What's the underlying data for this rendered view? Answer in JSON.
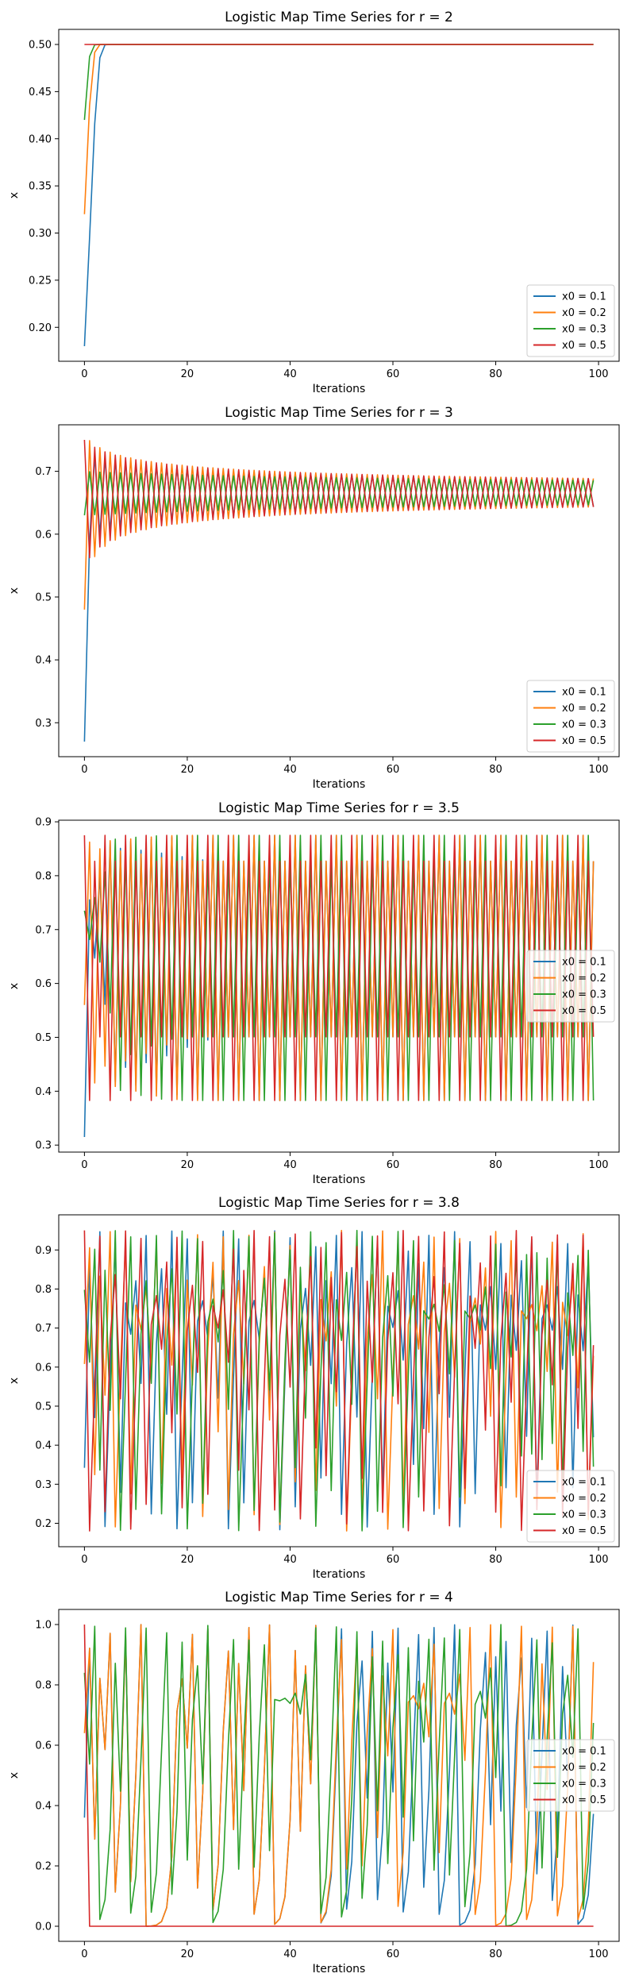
{
  "colors": {
    "x0 = 0.1": "#1f77b4",
    "x0 = 0.2": "#ff7f0e",
    "x0 = 0.3": "#2ca02c",
    "x0 = 0.5": "#d62728"
  },
  "chart_data": [
    {
      "type": "line",
      "title": "Logistic Map Time Series for r = 2",
      "xlabel": "Iterations",
      "ylabel": "x",
      "r": 2,
      "xlim": [
        -5,
        104
      ],
      "ylim": [
        0.164,
        0.516
      ],
      "xticks": [
        "0",
        "20",
        "40",
        "60",
        "80",
        "100"
      ],
      "yticks": [
        "0.20",
        "0.25",
        "0.30",
        "0.35",
        "0.40",
        "0.45",
        "0.50"
      ],
      "legend_position": "lower right",
      "series": [
        {
          "name": "x0 = 0.1",
          "x0": 0.1
        },
        {
          "name": "x0 = 0.2",
          "x0": 0.2
        },
        {
          "name": "x0 = 0.3",
          "x0": 0.3
        },
        {
          "name": "x0 = 0.5",
          "x0": 0.5
        }
      ]
    },
    {
      "type": "line",
      "title": "Logistic Map Time Series for r = 3",
      "xlabel": "Iterations",
      "ylabel": "x",
      "r": 3,
      "xlim": [
        -5,
        104
      ],
      "ylim": [
        0.246,
        0.774
      ],
      "xticks": [
        "0",
        "20",
        "40",
        "60",
        "80",
        "100"
      ],
      "yticks": [
        "0.3",
        "0.4",
        "0.5",
        "0.6",
        "0.7"
      ],
      "legend_position": "lower right",
      "series": [
        {
          "name": "x0 = 0.1",
          "x0": 0.1
        },
        {
          "name": "x0 = 0.2",
          "x0": 0.2
        },
        {
          "name": "x0 = 0.3",
          "x0": 0.3
        },
        {
          "name": "x0 = 0.5",
          "x0": 0.5
        }
      ]
    },
    {
      "type": "line",
      "title": "Logistic Map Time Series for r = 3.5",
      "xlabel": "Iterations",
      "ylabel": "x",
      "r": 3.5,
      "xlim": [
        -5,
        104
      ],
      "ylim": [
        0.287,
        0.903
      ],
      "xticks": [
        "0",
        "20",
        "40",
        "60",
        "80",
        "100"
      ],
      "yticks": [
        "0.3",
        "0.4",
        "0.5",
        "0.6",
        "0.7",
        "0.8",
        "0.9"
      ],
      "legend_position": "center right",
      "series": [
        {
          "name": "x0 = 0.1",
          "x0": 0.1
        },
        {
          "name": "x0 = 0.2",
          "x0": 0.2
        },
        {
          "name": "x0 = 0.3",
          "x0": 0.3
        },
        {
          "name": "x0 = 0.5",
          "x0": 0.5
        }
      ]
    },
    {
      "type": "line",
      "title": "Logistic Map Time Series for r = 3.8",
      "xlabel": "Iterations",
      "ylabel": "x",
      "r": 3.8,
      "xlim": [
        -5,
        104
      ],
      "ylim": [
        0.14,
        0.99
      ],
      "xticks": [
        "0",
        "20",
        "40",
        "60",
        "80",
        "100"
      ],
      "yticks": [
        "0.2",
        "0.3",
        "0.4",
        "0.5",
        "0.6",
        "0.7",
        "0.8",
        "0.9"
      ],
      "legend_position": "lower right",
      "series": [
        {
          "name": "x0 = 0.1",
          "x0": 0.1
        },
        {
          "name": "x0 = 0.2",
          "x0": 0.2
        },
        {
          "name": "x0 = 0.3",
          "x0": 0.3
        },
        {
          "name": "x0 = 0.5",
          "x0": 0.5
        }
      ]
    },
    {
      "type": "line",
      "title": "Logistic Map Time Series for r = 4",
      "xlabel": "Iterations",
      "ylabel": "x",
      "r": 4,
      "xlim": [
        -5,
        104
      ],
      "ylim": [
        -0.05,
        1.05
      ],
      "xticks": [
        "0",
        "20",
        "40",
        "60",
        "80",
        "100"
      ],
      "yticks": [
        "0.0",
        "0.2",
        "0.4",
        "0.6",
        "0.8",
        "1.0"
      ],
      "legend_position": "center right",
      "series": [
        {
          "name": "x0 = 0.1",
          "x0": 0.1
        },
        {
          "name": "x0 = 0.2",
          "x0": 0.2
        },
        {
          "name": "x0 = 0.3",
          "x0": 0.3
        },
        {
          "name": "x0 = 0.5",
          "x0": 0.5
        }
      ]
    }
  ]
}
